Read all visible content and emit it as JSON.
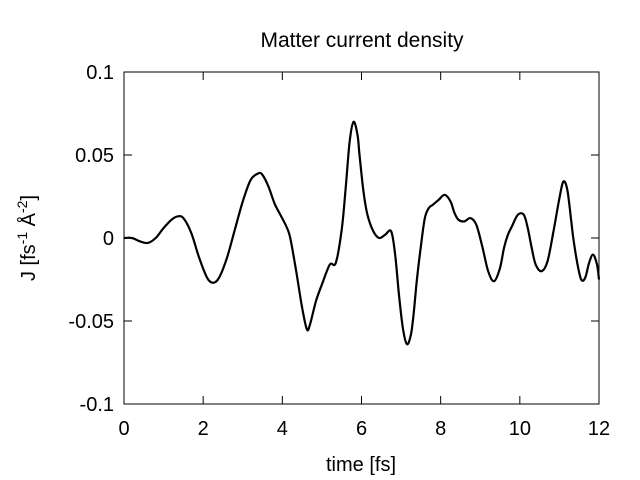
{
  "chart_data": {
    "type": "line",
    "title": "Matter current density",
    "xlabel": "time [fs]",
    "ylabel": {
      "parts": [
        "J [fs",
        "-1",
        " Å",
        "-2",
        "]"
      ]
    },
    "xlim": [
      0,
      12
    ],
    "ylim": [
      -0.1,
      0.1
    ],
    "xticks": [
      0,
      2,
      4,
      6,
      8,
      10,
      12
    ],
    "xtick_labels": [
      "0",
      "2",
      "4",
      "6",
      "8",
      "10",
      "12"
    ],
    "yticks": [
      -0.1,
      -0.05,
      0,
      0.05,
      0.1
    ],
    "ytick_labels": [
      "-0.1",
      "-0.05",
      "0",
      "0.05",
      "0.1"
    ],
    "grid": false,
    "series": [
      {
        "color": "#000000",
        "x": [
          0,
          0.2,
          0.4,
          0.6,
          0.8,
          1.0,
          1.2,
          1.35,
          1.5,
          1.7,
          1.9,
          2.1,
          2.25,
          2.4,
          2.6,
          2.8,
          3.0,
          3.2,
          3.4,
          3.5,
          3.65,
          3.8,
          3.95,
          4.1,
          4.2,
          4.35,
          4.5,
          4.62,
          4.7,
          4.85,
          5.0,
          5.2,
          5.35,
          5.5,
          5.6,
          5.7,
          5.8,
          5.9,
          5.95,
          6.05,
          6.15,
          6.3,
          6.45,
          6.6,
          6.75,
          6.85,
          6.95,
          7.05,
          7.15,
          7.25,
          7.32,
          7.4,
          7.5,
          7.6,
          7.7,
          7.8,
          7.95,
          8.1,
          8.25,
          8.35,
          8.45,
          8.6,
          8.75,
          8.9,
          9.05,
          9.2,
          9.35,
          9.5,
          9.6,
          9.7,
          9.8,
          9.95,
          10.1,
          10.2,
          10.3,
          10.4,
          10.55,
          10.7,
          10.85,
          11.0,
          11.1,
          11.2,
          11.3,
          11.35,
          11.45,
          11.55,
          11.65,
          11.75,
          11.85,
          11.95,
          12.0
        ],
        "y": [
          0,
          0,
          -0.002,
          -0.003,
          0.0,
          0.006,
          0.011,
          0.013,
          0.012,
          0.003,
          -0.012,
          -0.024,
          -0.027,
          -0.024,
          -0.012,
          0.005,
          0.022,
          0.035,
          0.039,
          0.038,
          0.031,
          0.021,
          0.014,
          0.007,
          0.0,
          -0.02,
          -0.042,
          -0.055,
          -0.052,
          -0.038,
          -0.028,
          -0.016,
          -0.015,
          0.005,
          0.03,
          0.058,
          0.07,
          0.062,
          0.05,
          0.028,
          0.014,
          0.004,
          0.0,
          0.002,
          0.004,
          -0.01,
          -0.035,
          -0.055,
          -0.064,
          -0.058,
          -0.045,
          -0.025,
          -0.005,
          0.012,
          0.018,
          0.02,
          0.023,
          0.026,
          0.022,
          0.015,
          0.011,
          0.01,
          0.012,
          0.008,
          -0.005,
          -0.02,
          -0.026,
          -0.018,
          -0.006,
          0.002,
          0.007,
          0.014,
          0.014,
          0.006,
          -0.006,
          -0.016,
          -0.02,
          -0.014,
          0.004,
          0.024,
          0.034,
          0.029,
          0.01,
          0.0,
          -0.015,
          -0.025,
          -0.024,
          -0.015,
          -0.01,
          -0.016,
          -0.025
        ]
      }
    ]
  }
}
